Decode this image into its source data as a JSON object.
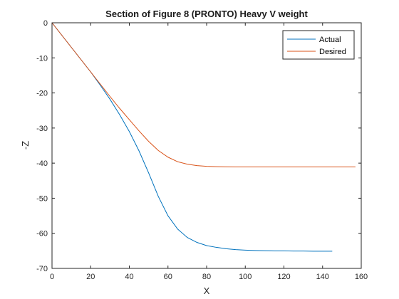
{
  "chart_data": {
    "type": "line",
    "title": "Section of Figure 8 (PRONTO) Heavy V weight",
    "xlabel": "X",
    "ylabel": "-Z",
    "xlim": [
      0,
      160
    ],
    "ylim": [
      -70,
      0
    ],
    "xticks": [
      0,
      20,
      40,
      60,
      80,
      100,
      120,
      140,
      160
    ],
    "yticks": [
      0,
      -10,
      -20,
      -30,
      -40,
      -50,
      -60,
      -70
    ],
    "grid": false,
    "legend_position": "top-right",
    "series": [
      {
        "name": "Actual",
        "color": "#0072BD",
        "x": [
          0,
          5,
          10,
          15,
          20,
          25,
          30,
          35,
          40,
          45,
          50,
          55,
          60,
          65,
          70,
          75,
          80,
          85,
          90,
          95,
          100,
          105,
          110,
          115,
          120,
          125,
          130,
          135,
          140,
          145
        ],
        "y": [
          0,
          -3.5,
          -7,
          -10.5,
          -14,
          -17.8,
          -21.8,
          -26.2,
          -31,
          -36.5,
          -42.8,
          -49.5,
          -55,
          -58.8,
          -61.2,
          -62.6,
          -63.5,
          -64.0,
          -64.4,
          -64.65,
          -64.8,
          -64.9,
          -64.95,
          -65.0,
          -65.0,
          -65.05,
          -65.05,
          -65.1,
          -65.1,
          -65.1
        ]
      },
      {
        "name": "Desired",
        "color": "#D95319",
        "x": [
          0,
          5,
          10,
          15,
          20,
          25,
          30,
          35,
          40,
          45,
          50,
          55,
          60,
          65,
          70,
          75,
          80,
          85,
          90,
          95,
          100,
          110,
          120,
          130,
          140,
          150,
          157
        ],
        "y": [
          0,
          -3.5,
          -7,
          -10.5,
          -14,
          -17.5,
          -21,
          -24.4,
          -27.6,
          -30.8,
          -33.8,
          -36.4,
          -38.3,
          -39.6,
          -40.3,
          -40.7,
          -40.9,
          -41.0,
          -41.05,
          -41.1,
          -41.1,
          -41.1,
          -41.1,
          -41.1,
          -41.1,
          -41.1,
          -41.1
        ]
      }
    ]
  }
}
